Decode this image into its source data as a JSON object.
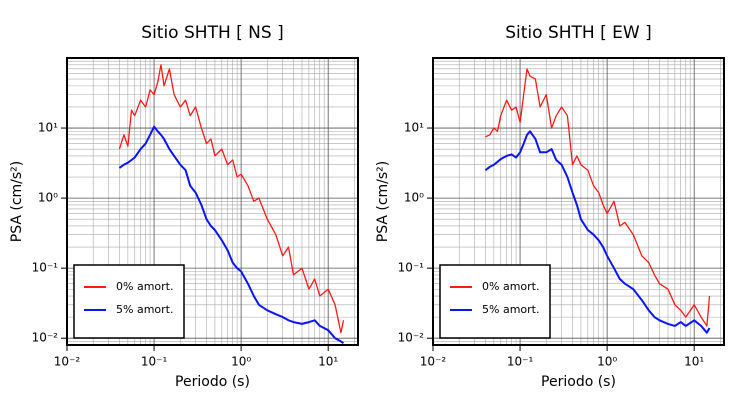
{
  "chart_data": [
    {
      "type": "line",
      "title": "Sitio SHTH [ NS ]",
      "xlabel": "Periodo (s)",
      "ylabel": "PSA (cm/s²)",
      "xscale": "log",
      "yscale": "log",
      "grid": true,
      "legend": "lower left",
      "xlim": [
        0.01,
        22
      ],
      "ylim": [
        0.008,
        100
      ],
      "xticks": [
        {
          "value": 0.01,
          "label": "10⁻²"
        },
        {
          "value": 0.1,
          "label": "10⁻¹"
        },
        {
          "value": 1,
          "label": "10⁰"
        },
        {
          "value": 10,
          "label": "10¹"
        }
      ],
      "yticks": [
        {
          "value": 0.01,
          "label": "10⁻²"
        },
        {
          "value": 0.1,
          "label": "10⁻¹"
        },
        {
          "value": 1,
          "label": "10⁰"
        },
        {
          "value": 10,
          "label": "10¹"
        }
      ],
      "x": [
        0.04,
        0.045,
        0.05,
        0.055,
        0.06,
        0.07,
        0.08,
        0.09,
        0.1,
        0.11,
        0.12,
        0.13,
        0.15,
        0.17,
        0.2,
        0.23,
        0.26,
        0.3,
        0.35,
        0.4,
        0.45,
        0.5,
        0.6,
        0.7,
        0.8,
        0.9,
        1.0,
        1.2,
        1.4,
        1.6,
        2,
        2.5,
        3,
        3.5,
        4,
        5,
        6,
        7,
        8,
        10,
        12,
        14,
        15
      ],
      "series": [
        {
          "name": "0% amort.",
          "color": "#ff1a1a",
          "values": [
            5,
            8,
            5.5,
            18,
            15,
            25,
            20,
            35,
            30,
            45,
            80,
            40,
            70,
            30,
            20,
            25,
            15,
            20,
            10,
            6,
            7,
            4,
            5,
            3,
            3.5,
            2,
            2.2,
            1.5,
            0.9,
            1.0,
            0.5,
            0.3,
            0.15,
            0.2,
            0.08,
            0.1,
            0.05,
            0.07,
            0.04,
            0.05,
            0.03,
            0.012,
            0.018
          ]
        },
        {
          "name": "5% amort.",
          "color": "#0a14ff",
          "values": [
            2.7,
            3,
            3.2,
            3.5,
            3.8,
            5,
            6,
            8,
            10.5,
            9,
            8,
            7,
            5,
            4,
            3,
            2.5,
            1.5,
            1.2,
            0.8,
            0.5,
            0.4,
            0.35,
            0.25,
            0.18,
            0.12,
            0.1,
            0.09,
            0.06,
            0.04,
            0.03,
            0.025,
            0.022,
            0.02,
            0.018,
            0.017,
            0.016,
            0.017,
            0.018,
            0.015,
            0.013,
            0.01,
            0.009,
            0.0085
          ]
        }
      ]
    },
    {
      "type": "line",
      "title": "Sitio SHTH [ EW ]",
      "xlabel": "Periodo (s)",
      "ylabel": "PSA (cm/s²)",
      "xscale": "log",
      "yscale": "log",
      "grid": true,
      "legend": "lower left",
      "xlim": [
        0.01,
        22
      ],
      "ylim": [
        0.008,
        100
      ],
      "xticks": [
        {
          "value": 0.01,
          "label": "10⁻²"
        },
        {
          "value": 0.1,
          "label": "10⁻¹"
        },
        {
          "value": 1,
          "label": "10⁰"
        },
        {
          "value": 10,
          "label": "10¹"
        }
      ],
      "yticks": [
        {
          "value": 0.01,
          "label": "10⁻²"
        },
        {
          "value": 0.1,
          "label": "10⁻¹"
        },
        {
          "value": 1,
          "label": "10⁰"
        },
        {
          "value": 10,
          "label": "10¹"
        }
      ],
      "x": [
        0.04,
        0.045,
        0.05,
        0.055,
        0.06,
        0.07,
        0.08,
        0.09,
        0.1,
        0.11,
        0.12,
        0.13,
        0.15,
        0.17,
        0.2,
        0.23,
        0.26,
        0.3,
        0.35,
        0.4,
        0.45,
        0.5,
        0.6,
        0.7,
        0.8,
        0.9,
        1.0,
        1.2,
        1.4,
        1.6,
        2,
        2.5,
        3,
        3.5,
        4,
        5,
        6,
        7,
        8,
        10,
        12,
        14,
        15
      ],
      "series": [
        {
          "name": "0% amort.",
          "color": "#ff1a1a",
          "values": [
            7.5,
            8,
            10,
            9,
            15,
            25,
            18,
            20,
            12,
            30,
            70,
            55,
            50,
            20,
            30,
            10,
            15,
            20,
            15,
            3,
            4,
            3,
            2.5,
            1.5,
            1.2,
            0.8,
            0.6,
            0.9,
            0.4,
            0.45,
            0.3,
            0.15,
            0.12,
            0.08,
            0.06,
            0.05,
            0.03,
            0.025,
            0.02,
            0.03,
            0.02,
            0.015,
            0.04
          ]
        },
        {
          "name": "5% amort.",
          "color": "#0a14ff",
          "values": [
            2.5,
            2.8,
            3,
            3.3,
            3.6,
            4,
            4.2,
            3.8,
            4.5,
            6,
            8,
            9,
            7,
            4.5,
            4.5,
            5,
            3.5,
            3,
            2,
            1.2,
            0.8,
            0.5,
            0.35,
            0.3,
            0.25,
            0.2,
            0.15,
            0.1,
            0.07,
            0.06,
            0.05,
            0.035,
            0.025,
            0.02,
            0.018,
            0.016,
            0.015,
            0.017,
            0.015,
            0.018,
            0.015,
            0.012,
            0.014
          ]
        }
      ]
    }
  ]
}
